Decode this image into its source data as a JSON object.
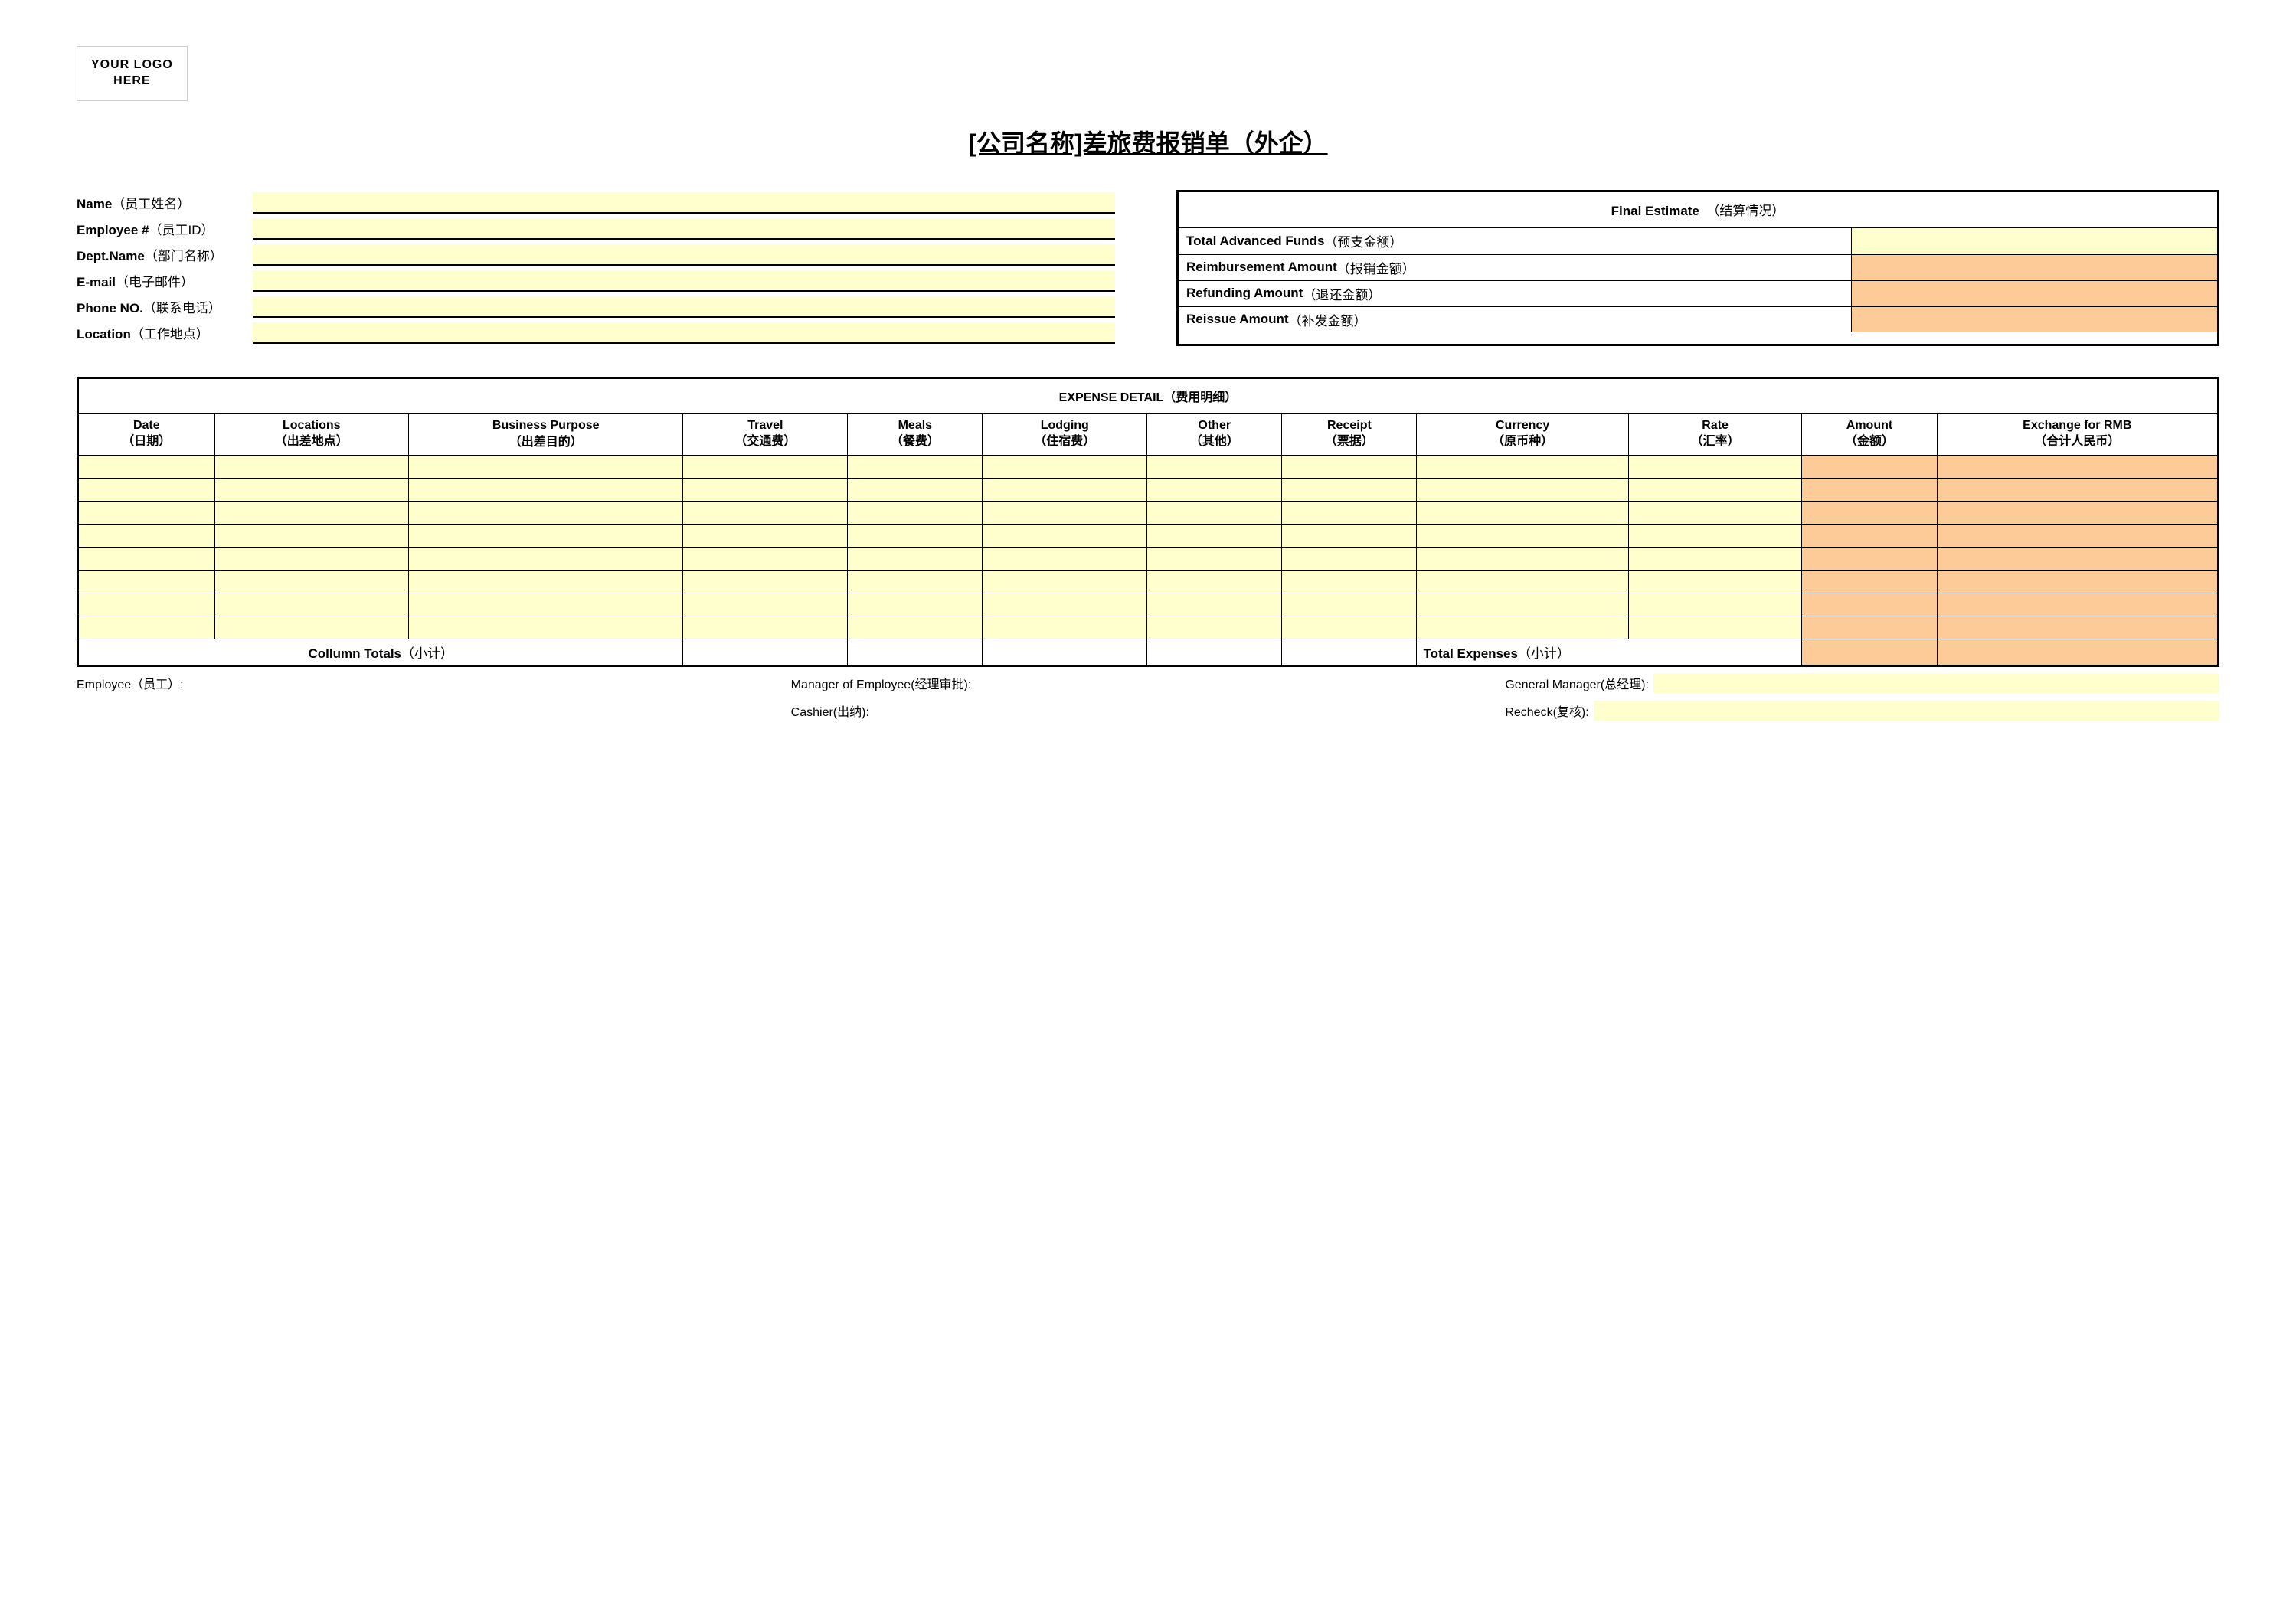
{
  "logo": {
    "line1": "YOUR LOGO",
    "line2": "HERE"
  },
  "title": "[公司名称]差旅费报销单（外企）",
  "employee": {
    "name": {
      "en": "Name",
      "cn": "（员工姓名）",
      "value": ""
    },
    "id": {
      "en": "Employee #",
      "cn": "（员工ID）",
      "value": ""
    },
    "dept": {
      "en": "Dept.Name",
      "cn": "（部门名称）",
      "value": ""
    },
    "email": {
      "en": "E-mail",
      "cn": "（电子邮件）",
      "value": ""
    },
    "phone": {
      "en": "Phone NO.",
      "cn": "（联系电话）",
      "value": ""
    },
    "location": {
      "en": "Location",
      "cn": "（工作地点）",
      "value": ""
    }
  },
  "final_estimate": {
    "header_en": "Final Estimate",
    "header_cn": "（结算情况）",
    "rows": [
      {
        "en": "Total Advanced Funds",
        "cn": "（预支金额）",
        "value": "",
        "fill": "yellow"
      },
      {
        "en": "Reimbursement Amount",
        "cn": "（报销金额）",
        "value": "",
        "fill": "orange"
      },
      {
        "en": "Refunding Amount",
        "cn": "（退还金额）",
        "value": "",
        "fill": "orange"
      },
      {
        "en": "Reissue Amount",
        "cn": "（补发金额）",
        "value": "",
        "fill": "orange"
      }
    ]
  },
  "expense_detail": {
    "title_en": "EXPENSE DETAIL",
    "title_cn": "（费用明细）",
    "columns": [
      {
        "en": "Date",
        "cn": "（日期）",
        "fill": "yellow"
      },
      {
        "en": "Locations",
        "cn": "（出差地点）",
        "fill": "yellow"
      },
      {
        "en": "Business Purpose",
        "cn": "（出差目的）",
        "fill": "yellow",
        "clipped": true
      },
      {
        "en": "Travel",
        "cn": "（交通费）",
        "fill": "yellow"
      },
      {
        "en": "Meals",
        "cn": "（餐费）",
        "fill": "yellow"
      },
      {
        "en": "Lodging",
        "cn": "（住宿费）",
        "fill": "yellow"
      },
      {
        "en": "Other",
        "cn": "（其他）",
        "fill": "yellow"
      },
      {
        "en": "Receipt",
        "cn": "（票据）",
        "fill": "yellow"
      },
      {
        "en": "Currency",
        "cn": "（原币种）",
        "fill": "yellow"
      },
      {
        "en": "Rate",
        "cn": "（汇率）",
        "fill": "yellow"
      },
      {
        "en": "Amount",
        "cn": "（金额）",
        "fill": "orange"
      },
      {
        "en": "Exchange for RMB",
        "cn": "（合计人民币）",
        "fill": "orange"
      }
    ],
    "row_count": 8,
    "footer": {
      "col_totals_en": "Collumn Totals",
      "col_totals_cn": "（小计）",
      "total_exp_en": "Total Expenses",
      "total_exp_cn": "（小计）"
    }
  },
  "signatures": {
    "employee": "Employee（员工）:",
    "manager": "Manager of Employee(经理审批):",
    "general_manager": "General Manager(总经理):",
    "cashier": "Cashier(出纳):",
    "recheck": "Recheck(复核):"
  },
  "colors": {
    "yellow": "#feffcc",
    "orange": "#fccb97"
  }
}
